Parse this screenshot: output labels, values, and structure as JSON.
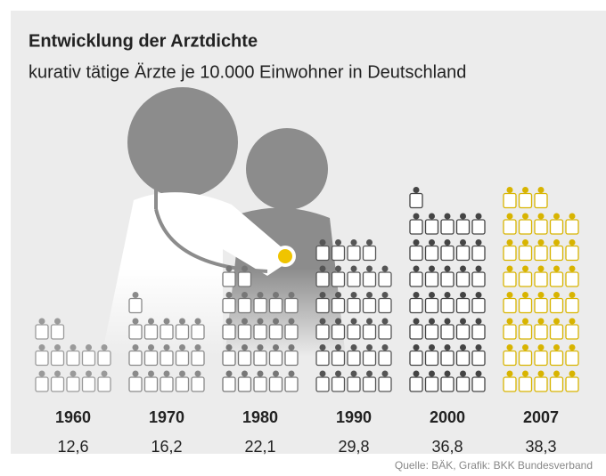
{
  "chart_data": {
    "type": "pictogram",
    "title": "Entwicklung der Arztdichte",
    "subtitle": "kurativ tätige Ärzte je 10.000 Einwohner in Deutschland",
    "categories": [
      "1960",
      "1970",
      "1980",
      "1990",
      "2000",
      "2007"
    ],
    "values": [
      12.6,
      16.2,
      22.1,
      29.8,
      36.8,
      38.3
    ],
    "value_labels": [
      "12,6",
      "16,2",
      "22,1",
      "29,8",
      "36,8",
      "38,3"
    ],
    "colors": [
      "#9a9a9a",
      "#8a8a8a",
      "#777777",
      "#555555",
      "#444444",
      "#d8b400"
    ],
    "source": "Quelle: BÄK, Grafik: BKK Bundesverband"
  }
}
